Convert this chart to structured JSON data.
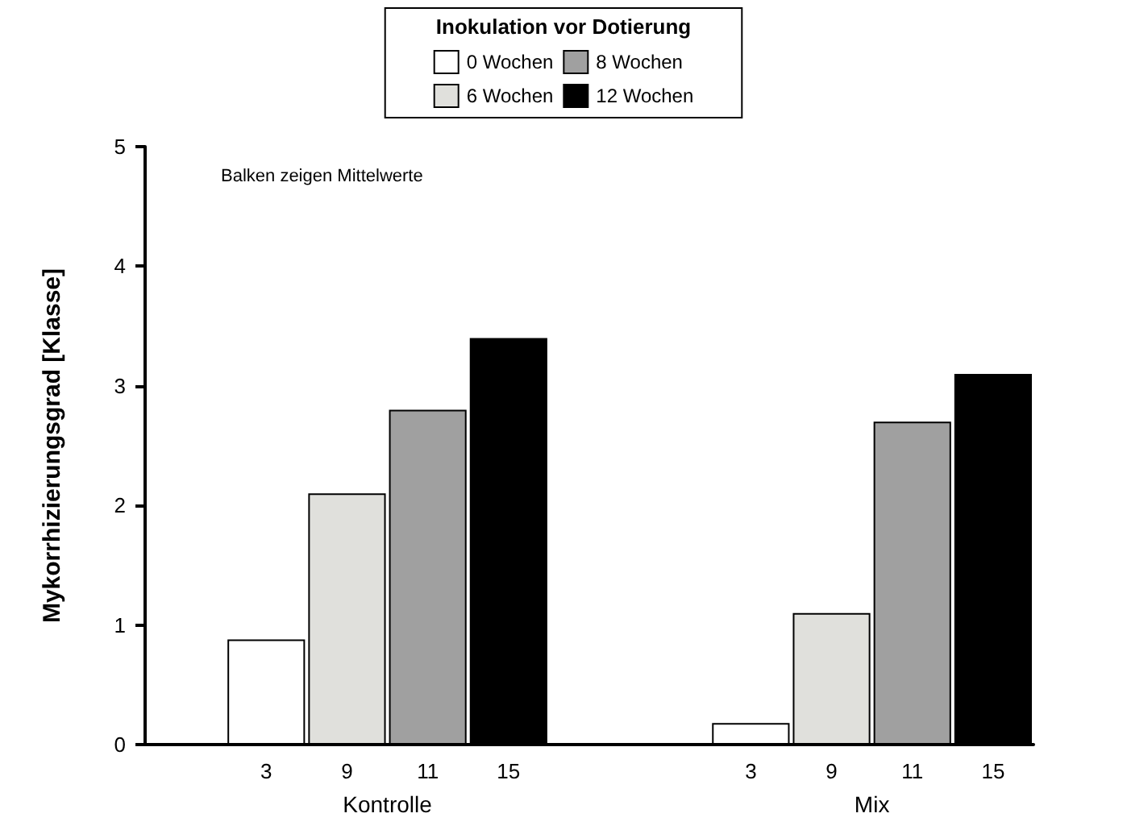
{
  "chart_data": {
    "type": "bar",
    "categories": [
      null,
      "3",
      "9",
      "11",
      "15",
      null,
      null,
      "3",
      "9",
      "11",
      "15"
    ],
    "ylabel": "Mykorrhizierungsgrad [Klasse]",
    "legend_title": "Inokulation vor Dotierung",
    "series": [
      {
        "name": "0 Wochen",
        "color": "#ffffff",
        "values": [
          null,
          0.88,
          null,
          null,
          null,
          null,
          null,
          0.18,
          null,
          null,
          null
        ]
      },
      {
        "name": "6 Wochen",
        "color": "#e0e0dc",
        "values": [
          null,
          null,
          2.1,
          null,
          null,
          null,
          null,
          null,
          1.1,
          null,
          null
        ]
      },
      {
        "name": "8 Wochen",
        "color": "#a0a0a0",
        "values": [
          null,
          null,
          null,
          2.8,
          null,
          null,
          null,
          null,
          null,
          2.7,
          null
        ]
      },
      {
        "name": "12 Wochen",
        "color": "#000000",
        "values": [
          null,
          null,
          null,
          null,
          3.4,
          null,
          null,
          null,
          null,
          null,
          3.1
        ]
      }
    ],
    "annotations": [
      "Balken zeigen Mittelwerte",
      "Kontrolle",
      "Mix"
    ],
    "ylim": [
      0,
      5
    ],
    "yticks": [
      0,
      1,
      2,
      3,
      4,
      5
    ],
    "grid": false,
    "legend": "top"
  }
}
